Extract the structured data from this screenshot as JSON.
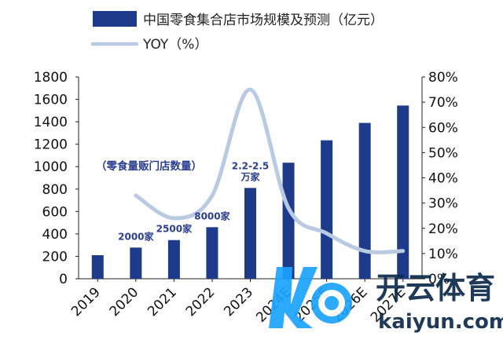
{
  "chart_data": {
    "type": "bar+line",
    "categories": [
      "2019",
      "2020",
      "2021",
      "2022",
      "2023",
      "2024E",
      "2025E",
      "2026E",
      "2027E"
    ],
    "series": [
      {
        "name": "中国零食集合店市场规模及预测（亿元）",
        "kind": "bar",
        "axis": "left",
        "color": "#1e3a8a",
        "values": [
          210,
          278,
          345,
          460,
          810,
          1035,
          1235,
          1390,
          1545
        ]
      },
      {
        "name": "YOY（%）",
        "kind": "line",
        "axis": "right",
        "color": "#b8cbe3",
        "values": [
          null,
          33,
          24,
          33,
          75,
          28,
          18,
          11,
          11
        ]
      }
    ],
    "y_left": {
      "min": 0,
      "max": 1800,
      "ticks": [
        0,
        200,
        400,
        600,
        800,
        1000,
        1200,
        1400,
        1600,
        1800
      ]
    },
    "y_right": {
      "min": 0,
      "max": 80,
      "ticks": [
        "0%",
        "10%",
        "20%",
        "30%",
        "40%",
        "50%",
        "60%",
        "70%",
        "80%"
      ]
    },
    "annotations": [
      {
        "label": "2000家",
        "category": "2020"
      },
      {
        "label": "2500家",
        "category": "2021"
      },
      {
        "label": "8000家",
        "category": "2022"
      },
      {
        "label": "2.2-2.5",
        "category": "2023"
      },
      {
        "label": "万家",
        "category": "2023"
      }
    ],
    "note": "（零食量贩门店数量）",
    "legend_position": "top-left",
    "grid": false
  },
  "watermark": {
    "brand": "开云体育",
    "url": "kaiyun.com"
  }
}
